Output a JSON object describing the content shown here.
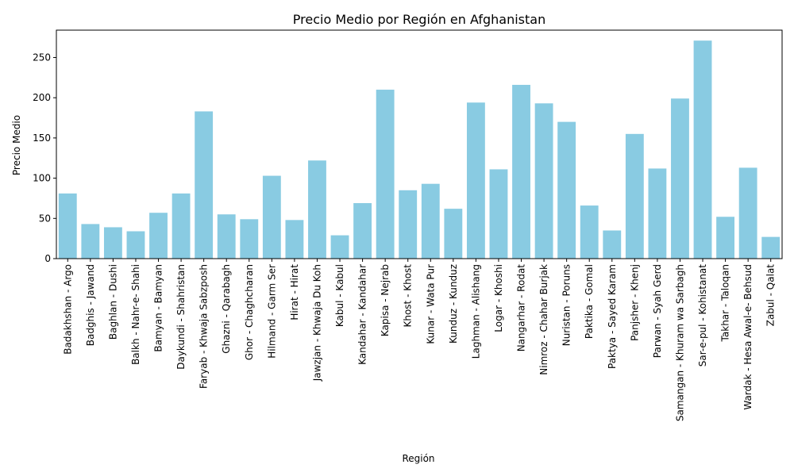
{
  "chart_data": {
    "type": "bar",
    "title": "Precio Medio por Región en Afghanistan",
    "xlabel": "Región",
    "ylabel": "Precio Medio",
    "ylim": [
      0,
      284
    ],
    "yticks": [
      0,
      50,
      100,
      150,
      200,
      250
    ],
    "grid": false,
    "bar_color": "#89cbe2",
    "categories": [
      "Badakhshan - Argo",
      "Badghis - Jawand",
      "Baghlan - Dushi",
      "Balkh - Nahr-e- Shahi",
      "Bamyan - Bamyan",
      "Daykundi - Shahristan",
      "Faryab - Khwaja Sabzposh",
      "Ghazni - Qarabagh",
      "Ghor - Chaghcharan",
      "Hilmand - Garm Ser",
      "Hirat - Hirat",
      "Jawzjan - Khwaja Du Koh",
      "Kabul - Kabul",
      "Kandahar - Kandahar",
      "Kapisa - Nejrab",
      "Khost - Khost",
      "Kunar - Wata Pur",
      "Kunduz - Kunduz",
      "Laghman - Alishang",
      "Logar - Khoshi",
      "Nangarhar - Rodat",
      "Nimroz - Chahar Burjak",
      "Nuristan - Poruns",
      "Paktika - Gomal",
      "Paktya - Sayed Karam",
      "Panjsher - Khenj",
      "Parwan - Syah Gerd",
      "Samangan - Khuram wa Sarbagh",
      "Sar-e-pul - Kohistanat",
      "Takhar - Taloqan",
      "Wardak - Hesa Awal-e- Behsud",
      "Zabul - Qalat"
    ],
    "values": [
      81,
      43,
      39,
      34,
      57,
      81,
      183,
      55,
      49,
      103,
      48,
      122,
      29,
      69,
      210,
      85,
      93,
      62,
      194,
      111,
      216,
      193,
      170,
      66,
      35,
      155,
      112,
      199,
      271,
      52,
      113,
      27
    ]
  }
}
